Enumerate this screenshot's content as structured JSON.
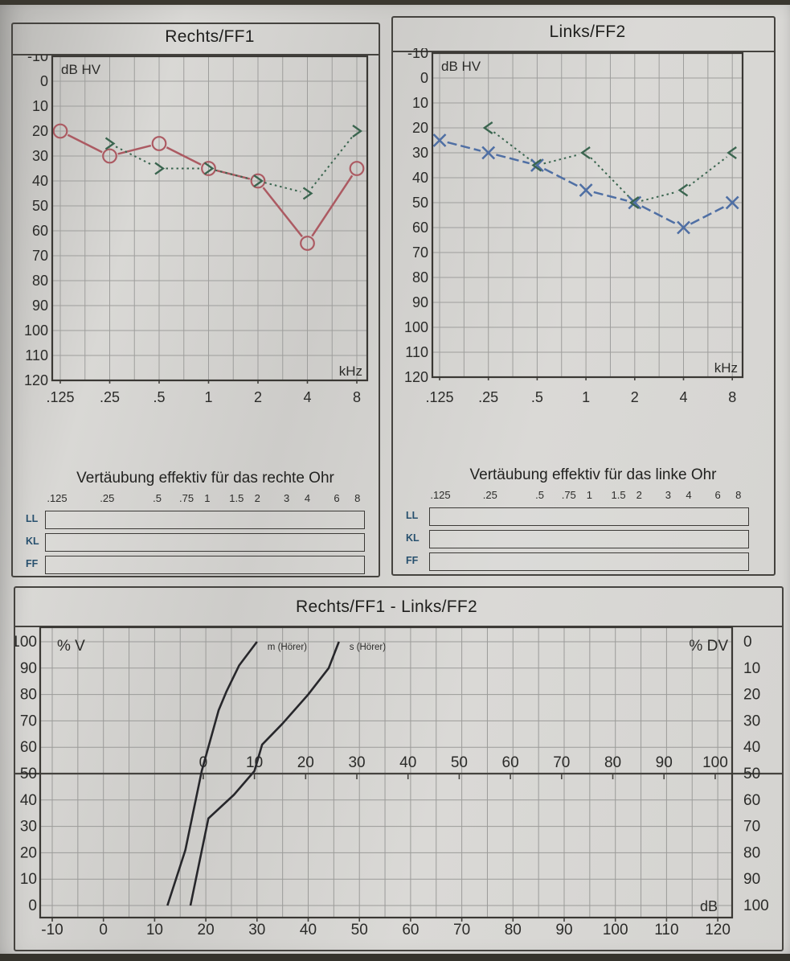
{
  "right_ear_panel": {
    "title": "Rechts/FF1",
    "db_label": "dB HV",
    "khz_label": "kHz",
    "masking": {
      "title": "Vertäubung effektiv für das rechte Ohr",
      "frequencies": [
        ".125",
        ".25",
        ".5",
        ".75",
        "1",
        "1.5",
        "2",
        "3",
        "4",
        "6",
        "8"
      ],
      "rows": [
        "LL",
        "KL",
        "FF"
      ]
    }
  },
  "left_ear_panel": {
    "title": "Links/FF2",
    "db_label": "dB HV",
    "khz_label": "kHz",
    "masking": {
      "title": "Vertäubung effektiv für das linke Ohr",
      "frequencies": [
        ".125",
        ".25",
        ".5",
        ".75",
        "1",
        "1.5",
        "2",
        "3",
        "4",
        "6",
        "8"
      ],
      "rows": [
        "LL",
        "KL",
        "FF"
      ]
    }
  },
  "speech_panel": {
    "title": "Rechts/FF1 - Links/FF2",
    "left_axis_label": "% V",
    "right_axis_label": "% DV",
    "db_unit_label": "dB"
  },
  "chart_data": [
    {
      "id": "audiogram-right",
      "type": "line",
      "title": "Rechts/FF1",
      "x_unit": "kHz",
      "y_unit": "dB HV",
      "x_ticks": [
        ".125",
        ".25",
        ".5",
        "1",
        "2",
        "4",
        "8"
      ],
      "x_values": [
        0.125,
        0.25,
        0.5,
        1,
        2,
        4,
        8
      ],
      "y_ticks": [
        -10,
        0,
        10,
        20,
        30,
        40,
        50,
        60,
        70,
        80,
        90,
        100,
        110,
        120
      ],
      "ylim": [
        -10,
        120
      ],
      "series": [
        {
          "name": "Luftleitung rechts (O)",
          "marker": "circle",
          "line_style": "solid",
          "color": "#ac5a62",
          "points": [
            [
              0.125,
              20
            ],
            [
              0.25,
              30
            ],
            [
              0.5,
              25
            ],
            [
              1,
              35
            ],
            [
              2,
              40
            ],
            [
              4,
              65
            ],
            [
              8,
              35
            ]
          ]
        },
        {
          "name": "Freifeld FF1 (>)",
          "marker": "chevron-right",
          "line_style": "dotted",
          "color": "#3a654f",
          "points": [
            [
              0.25,
              25
            ],
            [
              0.5,
              35
            ],
            [
              1,
              35
            ],
            [
              2,
              40
            ],
            [
              4,
              45
            ],
            [
              8,
              20
            ]
          ]
        }
      ]
    },
    {
      "id": "audiogram-left",
      "type": "line",
      "title": "Links/FF2",
      "x_unit": "kHz",
      "y_unit": "dB HV",
      "x_ticks": [
        ".125",
        ".25",
        ".5",
        "1",
        "2",
        "4",
        "8"
      ],
      "x_values": [
        0.125,
        0.25,
        0.5,
        1,
        2,
        4,
        8
      ],
      "y_ticks": [
        -10,
        0,
        10,
        20,
        30,
        40,
        50,
        60,
        70,
        80,
        90,
        100,
        110,
        120
      ],
      "ylim": [
        -10,
        120
      ],
      "series": [
        {
          "name": "Luftleitung links (X)",
          "marker": "x",
          "line_style": "dashed",
          "color": "#4f6fa4",
          "points": [
            [
              0.125,
              25
            ],
            [
              0.25,
              30
            ],
            [
              0.5,
              35
            ],
            [
              1,
              45
            ],
            [
              2,
              50
            ],
            [
              4,
              60
            ],
            [
              8,
              50
            ]
          ]
        },
        {
          "name": "Freifeld FF2 (<)",
          "marker": "chevron-left",
          "line_style": "dotted",
          "color": "#3a654f",
          "points": [
            [
              0.25,
              20
            ],
            [
              0.5,
              35
            ],
            [
              1,
              30
            ],
            [
              2,
              50
            ],
            [
              4,
              45
            ],
            [
              8,
              30
            ]
          ]
        }
      ]
    },
    {
      "id": "speech-audiogram",
      "type": "line",
      "title": "Rechts/FF1 - Links/FF2",
      "xlim": [
        -10,
        120
      ],
      "x_ticks": [
        -10,
        0,
        10,
        20,
        30,
        40,
        50,
        60,
        70,
        80,
        90,
        100,
        110,
        120
      ],
      "y_left": {
        "label": "% V",
        "ticks": [
          100,
          90,
          80,
          70,
          60,
          50,
          40,
          30,
          20,
          10,
          0
        ]
      },
      "y_right": {
        "label": "% DV",
        "ticks": [
          0,
          10,
          20,
          30,
          40,
          50,
          60,
          70,
          80,
          90,
          100
        ]
      },
      "inner_scale": {
        "ticks": [
          0,
          10,
          20,
          30,
          40,
          50,
          60,
          70,
          80,
          90,
          100
        ],
        "offset_db": 19.5
      },
      "grid": true,
      "series": [
        {
          "name": "m (Hörer)",
          "color": "#27272b",
          "points": [
            [
              12.5,
              0
            ],
            [
              16,
              21
            ],
            [
              19.2,
              51
            ],
            [
              22.5,
              74
            ],
            [
              24,
              81
            ],
            [
              26.5,
              91
            ],
            [
              30,
              100
            ]
          ]
        },
        {
          "name": "s (Hörer)",
          "color": "#27272b",
          "points": [
            [
              17,
              0
            ],
            [
              20.5,
              33
            ],
            [
              25.5,
              42
            ],
            [
              29.5,
              51
            ],
            [
              31,
              61
            ],
            [
              35,
              69
            ],
            [
              40,
              80
            ],
            [
              44,
              90
            ],
            [
              46,
              100
            ]
          ]
        }
      ]
    }
  ]
}
